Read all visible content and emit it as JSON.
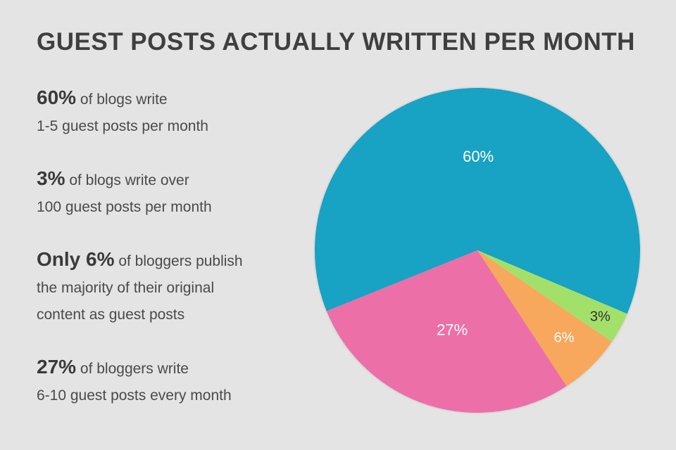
{
  "title": "GUEST POSTS ACTUALLY WRITTEN PER MONTH",
  "facts": [
    {
      "lead": "60%",
      "line1": "of blogs write",
      "line2": "1-5 guest posts per month"
    },
    {
      "lead": "3%",
      "line1": "of blogs write over",
      "line2": "100 guest posts per month"
    },
    {
      "lead": "Only 6%",
      "line1": "of bloggers publish",
      "line2": "the majority of their original",
      "line3": "content as guest posts"
    },
    {
      "lead": "27%",
      "line1": "of bloggers write",
      "line2": "6-10 guest posts every month"
    }
  ],
  "chart_data": {
    "type": "pie",
    "title": "GUEST POSTS ACTUALLY WRITTEN PER MONTH",
    "slices": [
      {
        "label": "60%",
        "value": 60,
        "color": "#18a2c3",
        "text_color": "#ffffff"
      },
      {
        "label": "27%",
        "value": 27,
        "color": "#ec6fa8",
        "text_color": "#ffffff"
      },
      {
        "label": "6%",
        "value": 6,
        "color": "#f7a85c",
        "text_color": "#ffffff"
      },
      {
        "label": "3%",
        "value": 3,
        "color": "#a3e06a",
        "text_color": "#333333"
      }
    ]
  }
}
